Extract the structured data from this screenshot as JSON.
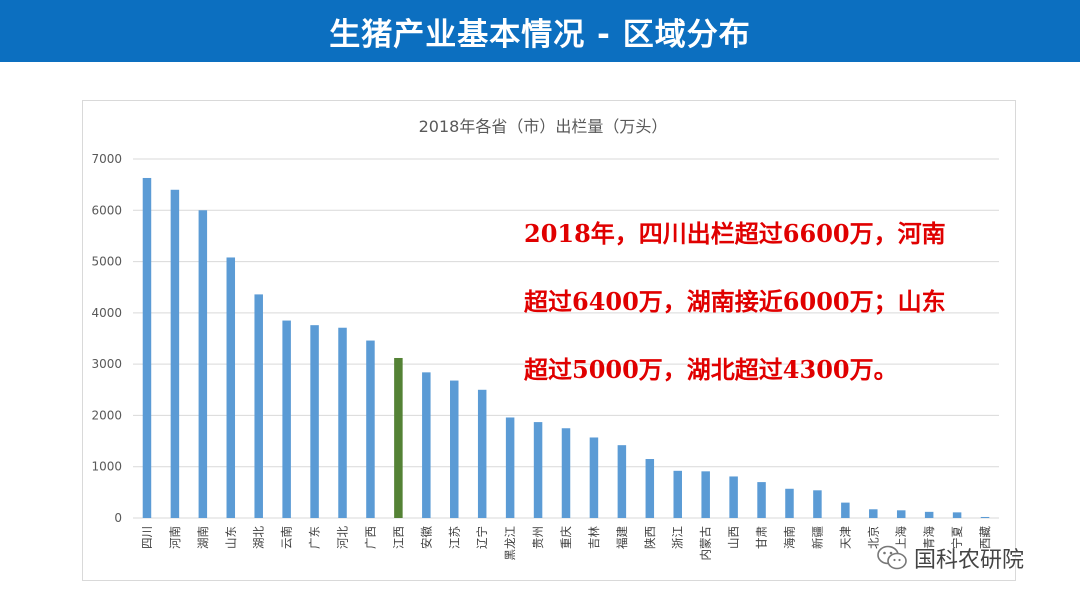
{
  "page": {
    "title": "生猪产业基本情况 - 区域分布",
    "watermark": "国科农研院",
    "annotation_lines": [
      "2018年，四川出栏超过6600万，河南",
      "超过6400万，湖南接近6000万；山东",
      "超过5000万，湖北超过4300万。"
    ],
    "colors": {
      "banner": "#0c6fc0",
      "bar": "#5b9bd5",
      "highlight_bar": "#548235",
      "annotation": "#e00000"
    }
  },
  "chart_data": {
    "type": "bar",
    "title": "2018年各省（市）出栏量（万头）",
    "categories": [
      "四川",
      "河南",
      "湖南",
      "山东",
      "湖北",
      "云南",
      "广东",
      "河北",
      "广西",
      "江西",
      "安徽",
      "江苏",
      "辽宁",
      "黑龙江",
      "贵州",
      "重庆",
      "吉林",
      "福建",
      "陕西",
      "浙江",
      "内蒙古",
      "山西",
      "甘肃",
      "海南",
      "新疆",
      "天津",
      "北京",
      "上海",
      "青海",
      "宁夏",
      "西藏"
    ],
    "values": [
      6630,
      6400,
      6000,
      5080,
      4360,
      3850,
      3760,
      3710,
      3460,
      3120,
      2840,
      2680,
      2500,
      1960,
      1870,
      1750,
      1570,
      1420,
      1150,
      920,
      910,
      810,
      700,
      570,
      540,
      300,
      170,
      150,
      120,
      110,
      20
    ],
    "highlight_category": "江西",
    "yticks": [
      0,
      1000,
      2000,
      3000,
      4000,
      5000,
      6000,
      7000
    ],
    "ylim": [
      0,
      7000
    ],
    "grid": true
  }
}
